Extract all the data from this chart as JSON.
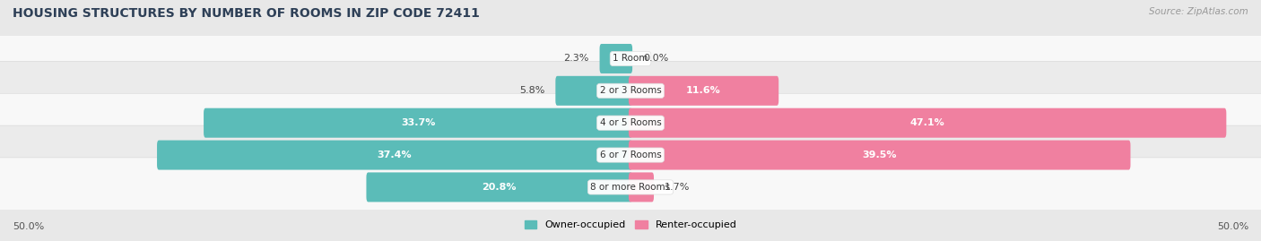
{
  "title": "HOUSING STRUCTURES BY NUMBER OF ROOMS IN ZIP CODE 72411",
  "source": "Source: ZipAtlas.com",
  "categories": [
    "1 Room",
    "2 or 3 Rooms",
    "4 or 5 Rooms",
    "6 or 7 Rooms",
    "8 or more Rooms"
  ],
  "owner_values": [
    2.3,
    5.8,
    33.7,
    37.4,
    20.8
  ],
  "renter_values": [
    0.0,
    11.6,
    47.1,
    39.5,
    1.7
  ],
  "owner_color": "#5bbcb8",
  "renter_color": "#f080a0",
  "axis_limit": 50.0,
  "bar_height": 0.62,
  "background_color": "#e8e8e8",
  "row_bg_light": "#f5f5f5",
  "row_bg_dark": "#e0e0e0",
  "owner_label": "Owner-occupied",
  "renter_label": "Renter-occupied",
  "title_color": "#2e4057",
  "label_color": "#333333",
  "source_color": "#999999"
}
